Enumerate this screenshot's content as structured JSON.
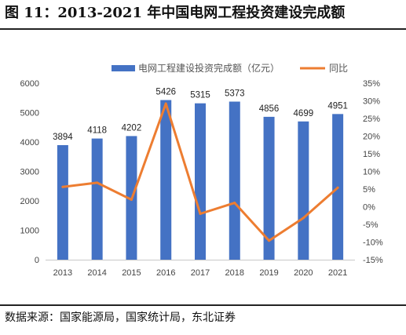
{
  "figure_title": "图 11：2013-2021 年中国电网工程投资建设完成额",
  "source": "数据来源：国家能源局，国家统计局，东北证券",
  "colors": {
    "bar": "#4472C4",
    "line": "#ED7D31"
  },
  "chart_data": {
    "type": "bar",
    "categories": [
      "2013",
      "2014",
      "2015",
      "2016",
      "2017",
      "2018",
      "2019",
      "2020",
      "2021"
    ],
    "series": [
      {
        "name": "电网工程建设投资完成额（亿元）",
        "type": "bar",
        "axis": "left",
        "values": [
          3894,
          4118,
          4202,
          5426,
          5315,
          5373,
          4856,
          4699,
          4951
        ]
      },
      {
        "name": "同比",
        "type": "line",
        "axis": "right",
        "values": [
          5.6,
          6.8,
          2.0,
          29.2,
          -2.0,
          1.1,
          -9.6,
          -3.2,
          5.4
        ]
      }
    ],
    "data_labels": [
      "3894",
      "4118",
      "4202",
      "5426",
      "5315",
      "5373",
      "4856",
      "4699",
      "4951"
    ],
    "ylim_left": [
      0,
      6000
    ],
    "yticks_left": [
      "0",
      "1000",
      "2000",
      "3000",
      "4000",
      "5000",
      "6000"
    ],
    "ylim_right": [
      -15,
      35
    ],
    "yticks_right": [
      "-15%",
      "-10%",
      "-5%",
      "0%",
      "5%",
      "10%",
      "15%",
      "20%",
      "25%",
      "30%",
      "35%"
    ],
    "grid": false,
    "legend_position": "top"
  }
}
